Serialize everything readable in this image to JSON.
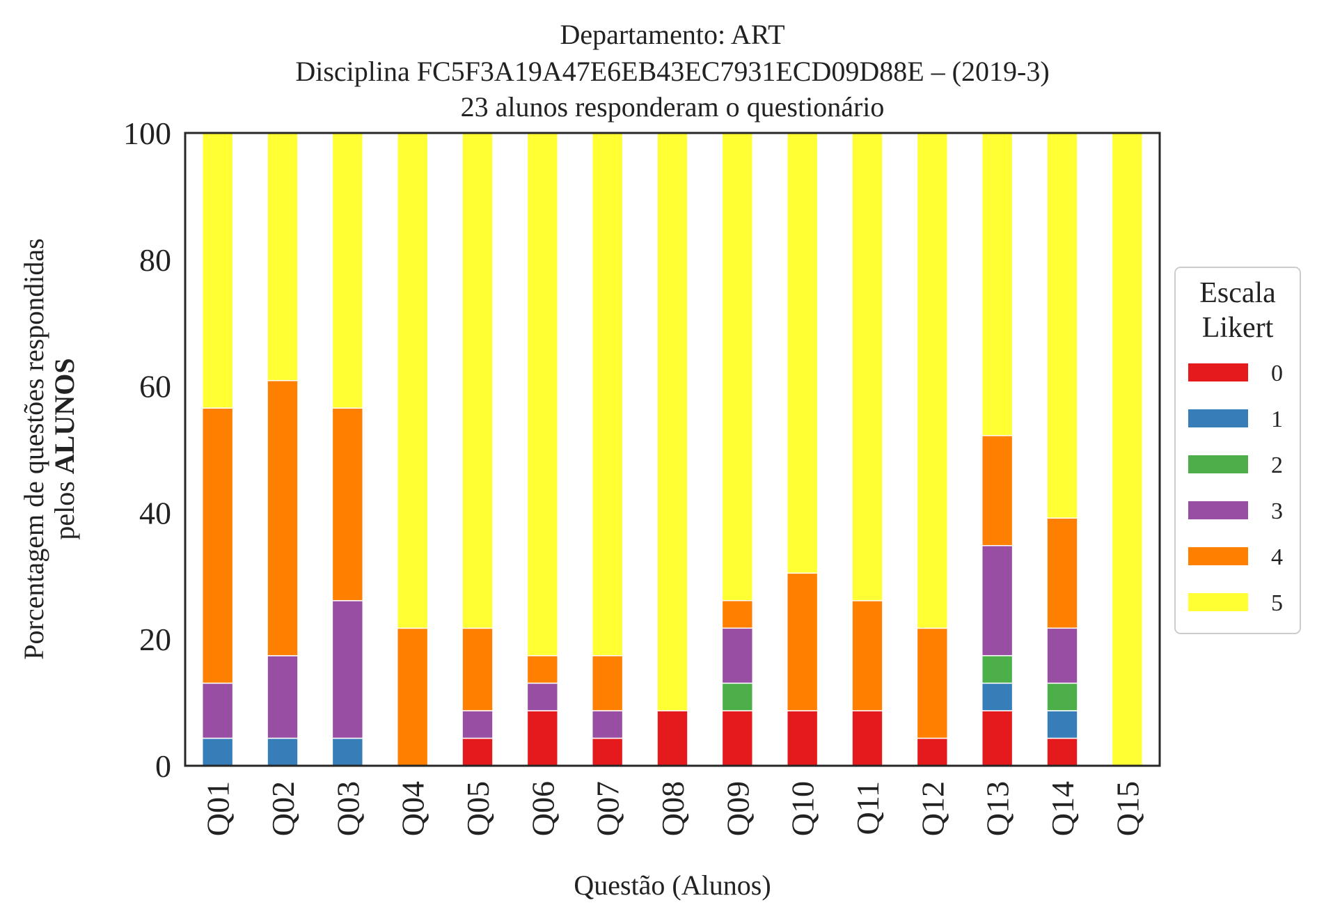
{
  "chart_data": {
    "type": "bar",
    "stacked": true,
    "title_lines": [
      "Departamento: ART",
      "Disciplina FC5F3A19A47E6EB43EC7931ECD09D88E – (2019-3)",
      "23 alunos responderam o questionário"
    ],
    "xlabel": "Questão (Alunos)",
    "ylabel_line1": "Porcentagem de questões respondidas",
    "ylabel_line2_prefix": "pelos ",
    "ylabel_line2_bold": "ALUNOS",
    "ylim": [
      0,
      100
    ],
    "yticks": [
      "0",
      "20",
      "40",
      "60",
      "80",
      "100"
    ],
    "categories": [
      "Q01",
      "Q02",
      "Q03",
      "Q04",
      "Q05",
      "Q06",
      "Q07",
      "Q08",
      "Q09",
      "Q10",
      "Q11",
      "Q12",
      "Q13",
      "Q14",
      "Q15"
    ],
    "legend": {
      "title_line1": "Escala",
      "title_line2": "Likert",
      "placement": "center-right outside"
    },
    "series": [
      {
        "name": "0",
        "color": "#e41a1c",
        "values": [
          0,
          0,
          0,
          0,
          4.35,
          8.7,
          4.35,
          8.7,
          8.7,
          8.7,
          8.7,
          4.35,
          8.7,
          4.35,
          0
        ]
      },
      {
        "name": "1",
        "color": "#377eb8",
        "values": [
          4.35,
          4.35,
          4.35,
          0,
          0,
          0,
          0,
          0,
          0,
          0,
          0,
          0,
          4.35,
          4.35,
          0
        ]
      },
      {
        "name": "2",
        "color": "#4daf4a",
        "values": [
          0,
          0,
          0,
          0,
          0,
          0,
          0,
          0,
          4.35,
          0,
          0,
          0,
          4.35,
          4.35,
          0
        ]
      },
      {
        "name": "3",
        "color": "#984ea3",
        "values": [
          8.7,
          13.04,
          21.74,
          0,
          4.35,
          4.35,
          4.35,
          0,
          8.7,
          0,
          0,
          0,
          17.39,
          8.7,
          0
        ]
      },
      {
        "name": "4",
        "color": "#ff7f00",
        "values": [
          43.48,
          43.48,
          30.43,
          21.74,
          13.04,
          4.35,
          8.7,
          0,
          4.35,
          21.74,
          17.39,
          17.39,
          17.39,
          17.39,
          0
        ]
      },
      {
        "name": "5",
        "color": "#ffff33",
        "values": [
          43.48,
          39.13,
          43.48,
          78.26,
          78.26,
          82.61,
          82.61,
          91.3,
          73.91,
          69.57,
          73.91,
          78.26,
          47.83,
          60.87,
          100
        ]
      }
    ]
  }
}
